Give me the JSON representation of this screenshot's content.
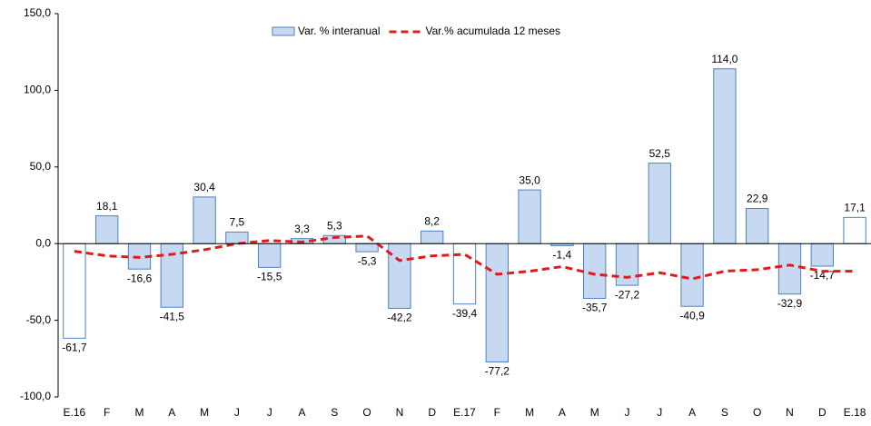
{
  "chart_data": {
    "type": "bar_line",
    "categories": [
      "E.16",
      "F",
      "M",
      "A",
      "M",
      "J",
      "J",
      "A",
      "S",
      "O",
      "N",
      "D",
      "E.17",
      "F",
      "M",
      "A",
      "M",
      "J",
      "J",
      "A",
      "S",
      "O",
      "N",
      "D",
      "E.18"
    ],
    "series": [
      {
        "name": "Var. % interanual",
        "type": "bar",
        "color": "#c6d9f1",
        "edge_color": "#4f81bd",
        "colors": [
          "#ffffff",
          "#c6d9f1",
          "#c6d9f1",
          "#c6d9f1",
          "#c6d9f1",
          "#c6d9f1",
          "#c6d9f1",
          "#c6d9f1",
          "#c6d9f1",
          "#c6d9f1",
          "#c6d9f1",
          "#c6d9f1",
          "#ffffff",
          "#c6d9f1",
          "#c6d9f1",
          "#c6d9f1",
          "#c6d9f1",
          "#c6d9f1",
          "#c6d9f1",
          "#c6d9f1",
          "#c6d9f1",
          "#c6d9f1",
          "#c6d9f1",
          "#c6d9f1",
          "#ffffff"
        ],
        "values": [
          -61.7,
          18.1,
          -16.6,
          -41.5,
          30.4,
          7.5,
          -15.5,
          3.3,
          5.3,
          -5.3,
          -42.2,
          8.2,
          -39.4,
          -77.2,
          35.0,
          -1.4,
          -35.7,
          -27.2,
          52.5,
          -40.9,
          114.0,
          22.9,
          -32.9,
          -14.7,
          17.1
        ],
        "value_labels": [
          "-61,7",
          "18,1",
          "-16,6",
          "-41,5",
          "30,4",
          "7,5",
          "-15,5",
          "3,3",
          "5,3",
          "-5,3",
          "-42,2",
          "8,2",
          "-39,4",
          "-77,2",
          "35,0",
          "-1,4",
          "-35,7",
          "-27,2",
          "52,5",
          "-40,9",
          "114,0",
          "22,9",
          "-32,9",
          "-14,7",
          "17,1"
        ]
      },
      {
        "name": "Var.% acumulada 12 meses",
        "type": "line",
        "color": "#e31a1c",
        "dashed": true,
        "values": [
          -5,
          -8,
          -9,
          -7,
          -4,
          0,
          2,
          1,
          4,
          5,
          -11,
          -8,
          -7,
          -20,
          -18,
          -15,
          -20,
          -22,
          -19,
          -23,
          -18,
          -17,
          -14,
          -18,
          -18
        ]
      }
    ],
    "ylim": [
      -100,
      150
    ],
    "yticks": [
      {
        "value": -100,
        "label": "-100,0"
      },
      {
        "value": -50,
        "label": "-50,0"
      },
      {
        "value": 0,
        "label": "0,0"
      },
      {
        "value": 50,
        "label": "50,0"
      },
      {
        "value": 100,
        "label": "100,0"
      },
      {
        "value": 150,
        "label": "150,0"
      }
    ],
    "grid": false
  }
}
